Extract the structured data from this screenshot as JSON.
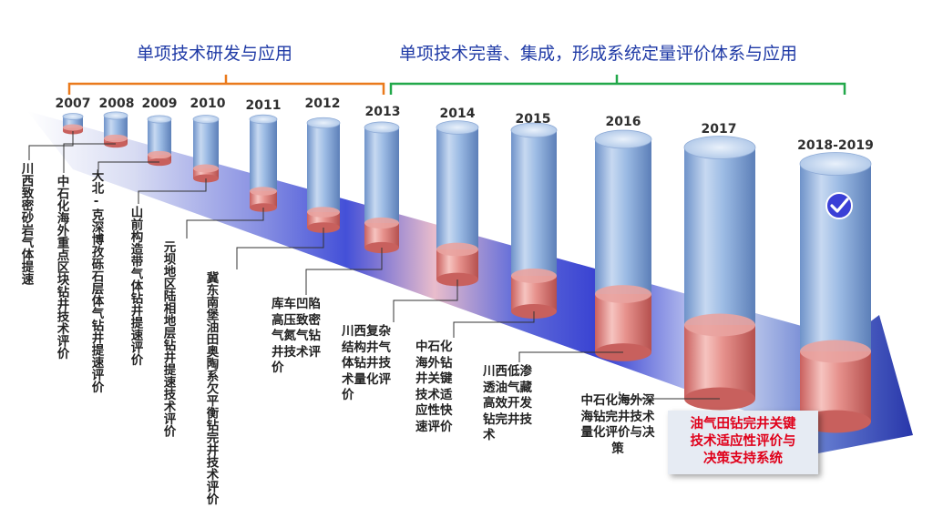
{
  "phases": {
    "phase1_title": "单项技术研发与应用",
    "phase2_title": "单项技术完善、集成，形成系统定量评价体系与应用",
    "phase1_color": "#ea7a1c",
    "phase2_color": "#22a84a"
  },
  "years": [
    "2007",
    "2008",
    "2009",
    "2010",
    "2011",
    "2012",
    "2013",
    "2014",
    "2015",
    "2016",
    "2017",
    "2018-2019"
  ],
  "descriptions": [
    "川西致密砂岩气体提速",
    "中石化海外重点区块钻井技术评价",
    "大北-克深博孜砾石层体气钻井提速评价",
    "山前构造带气体钻井提速评价",
    "元坝地区陆相地层钻井提速技术评价",
    "冀东南堡油田奥陶系欠平衡钻完井技术评价",
    "库车凹陷高压致密气氮气钻井技术评价",
    "川西复杂结构井气体钻井技术量化评价",
    "中石化海外钻井关键技术适应性快速评价",
    "川西低渗透油气藏高效开发钻完井技术",
    "中石化海外深海钻完井技术量化评价与决策"
  ],
  "final_box": {
    "line1": "油气田钻完井关键",
    "line2": "技术适应性评价与",
    "line3": "决策支持系统"
  },
  "icons": {
    "final_cylinder_icon": "check-circle-icon"
  },
  "colors": {
    "cylinder_blue": "#8fb1dd",
    "cylinder_red": "#e07b78",
    "arrow_blue": "#2a33c8",
    "final_text": "#e0001a"
  }
}
